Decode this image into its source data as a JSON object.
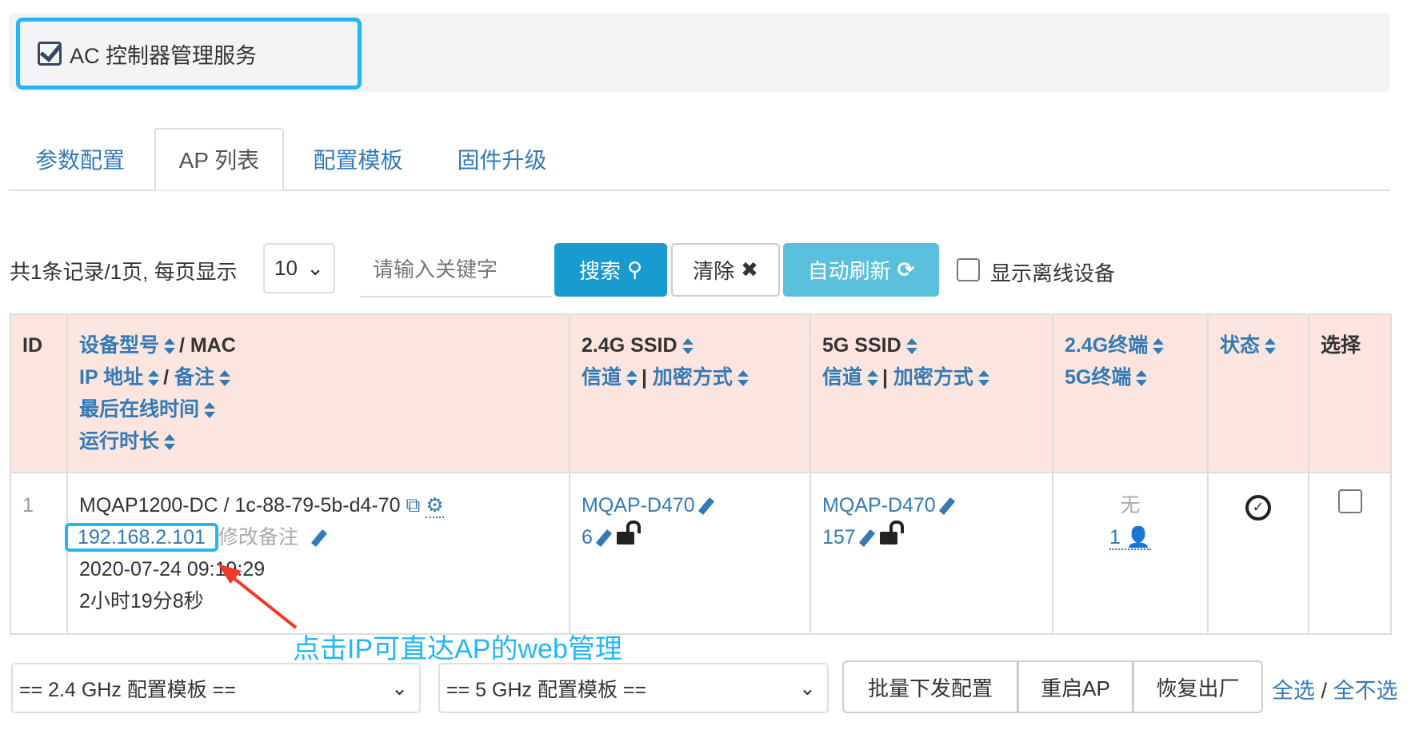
{
  "service": {
    "label": "AC 控制器管理服务",
    "checked": true
  },
  "tabs": [
    {
      "label": "参数配置"
    },
    {
      "label": "AP 列表",
      "active": true
    },
    {
      "label": "配置模板"
    },
    {
      "label": "固件升级"
    }
  ],
  "toolbar": {
    "summary": "共1条记录/1页, 每页显示",
    "page_size": "10",
    "search_placeholder": "请输入关键字",
    "search_label": "搜索",
    "clear_label": "清除",
    "refresh_label": "自动刷新",
    "offline_label": "显示离线设备"
  },
  "headers": {
    "id": "ID",
    "model": "设备型号",
    "mac": "/ MAC",
    "ip": "IP 地址",
    "remark": "备注",
    "last_online": "最后在线时间",
    "uptime": "运行时长",
    "ssid24": "2.4G SSID",
    "channel": "信道",
    "enc": "加密方式",
    "ssid5": "5G SSID",
    "term24": "2.4G终端",
    "term5": "5G终端",
    "status": "状态",
    "select": "选择"
  },
  "rows": [
    {
      "id": "1",
      "model_mac": "MQAP1200-DC / 1c-88-79-5b-d4-70",
      "ip": "192.168.2.101",
      "remark": "修改备注",
      "last_online": "2020-07-24 09:19:29",
      "uptime": "2小时19分8秒",
      "ssid24": "MQAP-D470",
      "ch24": "6",
      "ssid5": "MQAP-D470",
      "ch5": "157",
      "term24": "无",
      "term5": "1",
      "status": "online"
    }
  ],
  "annotation": "点击IP可直达AP的web管理",
  "footer": {
    "tpl24": "== 2.4 GHz 配置模板 ==",
    "tpl5": "== 5 GHz 配置模板 ==",
    "batch": "批量下发配置",
    "reboot": "重启AP",
    "reset": "恢复出厂",
    "select_all": "全选",
    "sep": "/",
    "select_none": "全不选"
  },
  "colors": {
    "accent": "#337ab7",
    "primary_btn": "#1a9bcf",
    "refresh_btn": "#5bc0de",
    "highlight": "#22b6f5",
    "header_bg": "#fde5df",
    "arrow": "#f23a2c"
  }
}
